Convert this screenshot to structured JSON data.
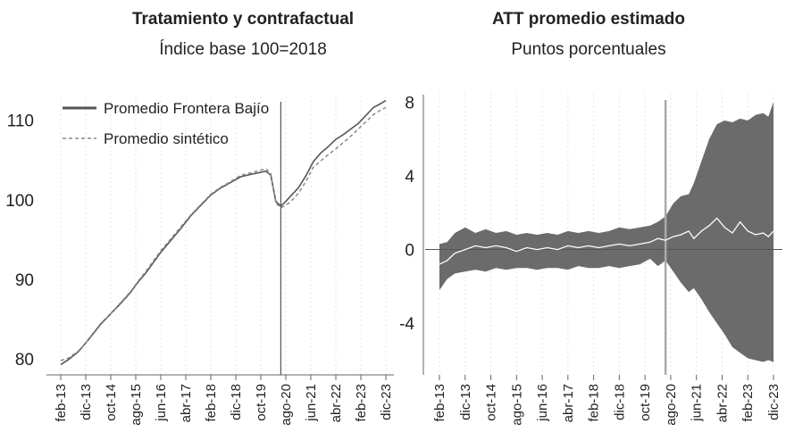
{
  "chart_data": [
    {
      "type": "line",
      "title": "Tratamiento y contrafactual",
      "subtitle": "Índice base 100=2018",
      "x_labels": [
        "feb-13",
        "dic-13",
        "oct-14",
        "ago-15",
        "jun-16",
        "abr-17",
        "feb-18",
        "dic-18",
        "oct-19",
        "ago-20",
        "jun-21",
        "abr-22",
        "feb-23",
        "dic-23"
      ],
      "ylim": [
        78,
        113
      ],
      "y_ticks": [
        80,
        90,
        100,
        110
      ],
      "treatment_start": "jun-20",
      "legend_position": "top-left",
      "colors": {
        "treated": "#555555",
        "synthetic": "#8a8a8a"
      },
      "series": [
        {
          "name": "Promedio Frontera Bajío",
          "style": "solid",
          "points": [
            [
              "feb-13",
              79.3
            ],
            [
              "may-13",
              79.9
            ],
            [
              "sep-13",
              80.9
            ],
            [
              "dic-13",
              82.0
            ],
            [
              "mar-14",
              83.2
            ],
            [
              "jun-14",
              84.4
            ],
            [
              "oct-14",
              85.7
            ],
            [
              "feb-15",
              87.0
            ],
            [
              "jun-15",
              88.4
            ],
            [
              "sep-15",
              89.7
            ],
            [
              "dic-15",
              90.8
            ],
            [
              "mar-16",
              92.1
            ],
            [
              "jun-16",
              93.4
            ],
            [
              "oct-16",
              94.9
            ],
            [
              "feb-17",
              96.4
            ],
            [
              "jun-17",
              98.0
            ],
            [
              "oct-17",
              99.3
            ],
            [
              "feb-18",
              100.6
            ],
            [
              "jun-18",
              101.5
            ],
            [
              "oct-18",
              102.2
            ],
            [
              "feb-19",
              102.9
            ],
            [
              "jun-19",
              103.2
            ],
            [
              "dic-19",
              103.6
            ],
            [
              "feb-20",
              103.1
            ],
            [
              "abr-20",
              99.8
            ],
            [
              "jun-20",
              99.2
            ],
            [
              "ago-20",
              99.8
            ],
            [
              "oct-20",
              100.5
            ],
            [
              "ene-21",
              101.5
            ],
            [
              "abr-21",
              103.0
            ],
            [
              "jul-21",
              104.8
            ],
            [
              "oct-21",
              105.9
            ],
            [
              "ene-22",
              106.7
            ],
            [
              "abr-22",
              107.6
            ],
            [
              "jul-22",
              108.2
            ],
            [
              "oct-22",
              108.9
            ],
            [
              "ene-23",
              109.6
            ],
            [
              "abr-23",
              110.6
            ],
            [
              "jul-23",
              111.6
            ],
            [
              "oct-23",
              112.1
            ],
            [
              "dic-23",
              112.5
            ]
          ]
        },
        {
          "name": "Promedio sintético",
          "style": "dashed",
          "points": [
            [
              "feb-13",
              79.8
            ],
            [
              "may-13",
              80.1
            ],
            [
              "sep-13",
              81.0
            ],
            [
              "dic-13",
              82.0
            ],
            [
              "mar-14",
              83.1
            ],
            [
              "jun-14",
              84.3
            ],
            [
              "oct-14",
              85.7
            ],
            [
              "feb-15",
              87.1
            ],
            [
              "jun-15",
              88.5
            ],
            [
              "sep-15",
              89.8
            ],
            [
              "dic-15",
              91.0
            ],
            [
              "mar-16",
              92.3
            ],
            [
              "jun-16",
              93.6
            ],
            [
              "oct-16",
              95.1
            ],
            [
              "feb-17",
              96.6
            ],
            [
              "jun-17",
              98.1
            ],
            [
              "oct-17",
              99.4
            ],
            [
              "feb-18",
              100.7
            ],
            [
              "jun-18",
              101.6
            ],
            [
              "oct-18",
              102.3
            ],
            [
              "feb-19",
              103.1
            ],
            [
              "jun-19",
              103.4
            ],
            [
              "dic-19",
              103.9
            ],
            [
              "feb-20",
              103.3
            ],
            [
              "abr-20",
              99.6
            ],
            [
              "jun-20",
              99.0
            ],
            [
              "ago-20",
              99.3
            ],
            [
              "oct-20",
              99.8
            ],
            [
              "ene-21",
              100.8
            ],
            [
              "abr-21",
              102.3
            ],
            [
              "jul-21",
              104.1
            ],
            [
              "oct-21",
              104.9
            ],
            [
              "ene-22",
              105.7
            ],
            [
              "abr-22",
              106.4
            ],
            [
              "jul-22",
              107.2
            ],
            [
              "oct-22",
              108.0
            ],
            [
              "ene-23",
              108.9
            ],
            [
              "abr-23",
              109.8
            ],
            [
              "jul-23",
              110.7
            ],
            [
              "oct-23",
              111.3
            ],
            [
              "dic-23",
              111.6
            ]
          ]
        }
      ]
    },
    {
      "type": "area",
      "title": "ATT promedio estimado",
      "subtitle": "Puntos porcentuales",
      "x_labels": [
        "feb-13",
        "dic-13",
        "oct-14",
        "ago-15",
        "jun-16",
        "abr-17",
        "feb-18",
        "dic-18",
        "oct-19",
        "ago-20",
        "jun-21",
        "abr-22",
        "feb-23",
        "dic-23"
      ],
      "ylim": [
        -6.8,
        8.5
      ],
      "y_ticks": [
        8,
        4,
        0,
        -4
      ],
      "y_tick_labels": [
        "8",
        "4",
        "0",
        "-4"
      ],
      "treatment_start": "jun-20",
      "colors": {
        "band": "#6b6b6b",
        "att_line": "#ffffff",
        "zero_line": "#555555",
        "treatment_line": "#aaaaaa"
      },
      "band": {
        "upper": [
          [
            "feb-13",
            0.3
          ],
          [
            "may-13",
            0.4
          ],
          [
            "ago-13",
            0.9
          ],
          [
            "dic-13",
            1.2
          ],
          [
            "abr-14",
            0.9
          ],
          [
            "ago-14",
            1.1
          ],
          [
            "dic-14",
            0.9
          ],
          [
            "abr-15",
            1.0
          ],
          [
            "ago-15",
            0.8
          ],
          [
            "dic-15",
            0.9
          ],
          [
            "abr-16",
            0.8
          ],
          [
            "ago-16",
            0.9
          ],
          [
            "dic-16",
            0.8
          ],
          [
            "abr-17",
            1.0
          ],
          [
            "ago-17",
            0.9
          ],
          [
            "dic-17",
            1.0
          ],
          [
            "abr-18",
            0.9
          ],
          [
            "ago-18",
            1.0
          ],
          [
            "dic-18",
            1.2
          ],
          [
            "abr-19",
            1.1
          ],
          [
            "ago-19",
            1.2
          ],
          [
            "dic-19",
            1.3
          ],
          [
            "mar-20",
            1.5
          ],
          [
            "jun-20",
            1.8
          ],
          [
            "sep-20",
            2.5
          ],
          [
            "dic-20",
            2.9
          ],
          [
            "mar-21",
            3.0
          ],
          [
            "may-21",
            3.6
          ],
          [
            "ago-21",
            4.8
          ],
          [
            "nov-21",
            6.0
          ],
          [
            "feb-22",
            6.8
          ],
          [
            "may-22",
            7.0
          ],
          [
            "ago-22",
            6.9
          ],
          [
            "nov-22",
            7.1
          ],
          [
            "feb-23",
            7.0
          ],
          [
            "may-23",
            7.3
          ],
          [
            "ago-23",
            7.4
          ],
          [
            "oct-23",
            7.2
          ],
          [
            "dic-23",
            8.0
          ]
        ],
        "lower": [
          [
            "feb-13",
            -2.2
          ],
          [
            "may-13",
            -1.6
          ],
          [
            "ago-13",
            -1.3
          ],
          [
            "dic-13",
            -1.2
          ],
          [
            "abr-14",
            -1.1
          ],
          [
            "ago-14",
            -1.2
          ],
          [
            "dic-14",
            -1.0
          ],
          [
            "abr-15",
            -1.1
          ],
          [
            "ago-15",
            -1.0
          ],
          [
            "dic-15",
            -1.0
          ],
          [
            "abr-16",
            -1.1
          ],
          [
            "ago-16",
            -1.0
          ],
          [
            "dic-16",
            -1.0
          ],
          [
            "abr-17",
            -1.1
          ],
          [
            "ago-17",
            -0.9
          ],
          [
            "dic-17",
            -1.0
          ],
          [
            "abr-18",
            -1.0
          ],
          [
            "ago-18",
            -0.9
          ],
          [
            "dic-18",
            -1.0
          ],
          [
            "abr-19",
            -0.9
          ],
          [
            "ago-19",
            -0.8
          ],
          [
            "dic-19",
            -0.5
          ],
          [
            "mar-20",
            -0.9
          ],
          [
            "jun-20",
            -0.6
          ],
          [
            "sep-20",
            -1.2
          ],
          [
            "dic-20",
            -1.8
          ],
          [
            "mar-21",
            -2.3
          ],
          [
            "may-21",
            -2.1
          ],
          [
            "ago-21",
            -2.7
          ],
          [
            "nov-21",
            -3.4
          ],
          [
            "feb-22",
            -4.0
          ],
          [
            "may-22",
            -4.6
          ],
          [
            "ago-22",
            -5.3
          ],
          [
            "nov-22",
            -5.6
          ],
          [
            "feb-23",
            -5.9
          ],
          [
            "may-23",
            -6.0
          ],
          [
            "ago-23",
            -6.1
          ],
          [
            "oct-23",
            -6.0
          ],
          [
            "dic-23",
            -6.1
          ]
        ]
      },
      "series": [
        {
          "name": "",
          "points": [
            [
              "feb-13",
              -0.8
            ],
            [
              "may-13",
              -0.6
            ],
            [
              "ago-13",
              -0.2
            ],
            [
              "dic-13",
              0.0
            ],
            [
              "abr-14",
              0.2
            ],
            [
              "ago-14",
              0.1
            ],
            [
              "dic-14",
              0.2
            ],
            [
              "abr-15",
              0.1
            ],
            [
              "ago-15",
              -0.1
            ],
            [
              "dic-15",
              0.1
            ],
            [
              "abr-16",
              0.0
            ],
            [
              "ago-16",
              0.1
            ],
            [
              "dic-16",
              0.0
            ],
            [
              "abr-17",
              0.2
            ],
            [
              "ago-17",
              0.1
            ],
            [
              "dic-17",
              0.2
            ],
            [
              "abr-18",
              0.1
            ],
            [
              "ago-18",
              0.2
            ],
            [
              "dic-18",
              0.3
            ],
            [
              "abr-19",
              0.2
            ],
            [
              "ago-19",
              0.3
            ],
            [
              "dic-19",
              0.4
            ],
            [
              "mar-20",
              0.6
            ],
            [
              "jun-20",
              0.5
            ],
            [
              "sep-20",
              0.7
            ],
            [
              "dic-20",
              0.8
            ],
            [
              "mar-21",
              1.0
            ],
            [
              "may-21",
              0.6
            ],
            [
              "ago-21",
              1.0
            ],
            [
              "nov-21",
              1.3
            ],
            [
              "feb-22",
              1.7
            ],
            [
              "may-22",
              1.2
            ],
            [
              "ago-22",
              0.9
            ],
            [
              "nov-22",
              1.5
            ],
            [
              "feb-23",
              1.0
            ],
            [
              "may-23",
              0.8
            ],
            [
              "ago-23",
              0.9
            ],
            [
              "oct-23",
              0.7
            ],
            [
              "dic-23",
              1.0
            ]
          ]
        }
      ]
    }
  ]
}
